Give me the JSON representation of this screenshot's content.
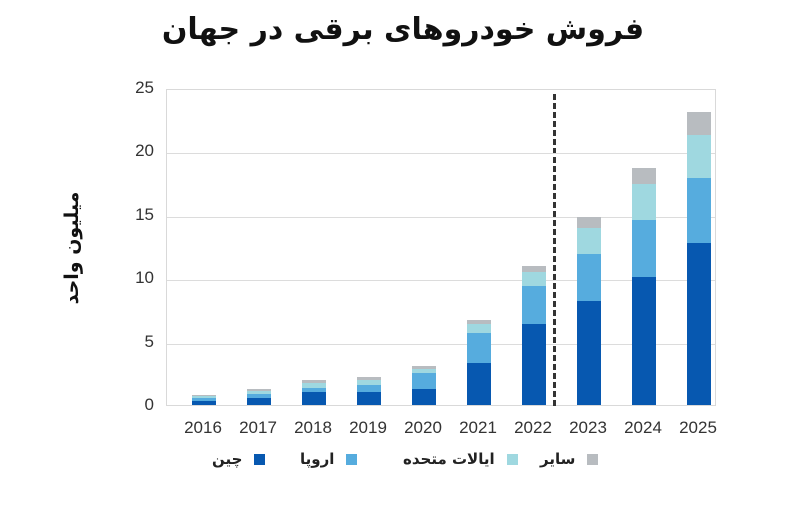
{
  "title": "فروش خودروهای برقی در جهان",
  "colors": {
    "china": "#0758b0",
    "europe": "#56acde",
    "us": "#9fd8e0",
    "other": "#b8bcc0"
  },
  "chart_data": {
    "type": "bar",
    "stacked": true,
    "title": "فروش خودروهای برقی در جهان",
    "xlabel": "",
    "ylabel": "میلیون واحد",
    "ylim": [
      0,
      25
    ],
    "yticks": [
      0,
      5,
      10,
      15,
      20,
      25
    ],
    "grid": true,
    "legend_position": "bottom",
    "categories": [
      "2016",
      "2017",
      "2018",
      "2019",
      "2020",
      "2021",
      "2022",
      "2023",
      "2024",
      "2025"
    ],
    "series": [
      {
        "name": "چین",
        "color": "#0758b0",
        "values": [
          0.35,
          0.55,
          1.05,
          1.05,
          1.25,
          3.3,
          6.4,
          8.2,
          10.1,
          12.8
        ]
      },
      {
        "name": "اروپا",
        "color": "#56acde",
        "values": [
          0.2,
          0.3,
          0.3,
          0.55,
          1.3,
          2.4,
          3.0,
          3.7,
          4.5,
          5.1
        ]
      },
      {
        "name": "ایالات متحده",
        "color": "#9fd8e0",
        "values": [
          0.15,
          0.25,
          0.4,
          0.4,
          0.3,
          0.7,
          1.1,
          2.1,
          2.8,
          3.4
        ]
      },
      {
        "name": "سایر",
        "color": "#b8bcc0",
        "values": [
          0.1,
          0.15,
          0.25,
          0.2,
          0.25,
          0.3,
          0.5,
          0.8,
          1.3,
          1.8
        ]
      }
    ],
    "annotations": [
      {
        "type": "vertical-dashed-line",
        "between": [
          "2022",
          "2023"
        ],
        "meaning": "actual vs forecast divider"
      }
    ]
  },
  "legend": [
    {
      "label": "چین",
      "key": "china"
    },
    {
      "label": "اروپا",
      "key": "europe"
    },
    {
      "label": "ایالات متحده",
      "key": "us"
    },
    {
      "label": "سایر",
      "key": "other"
    }
  ]
}
